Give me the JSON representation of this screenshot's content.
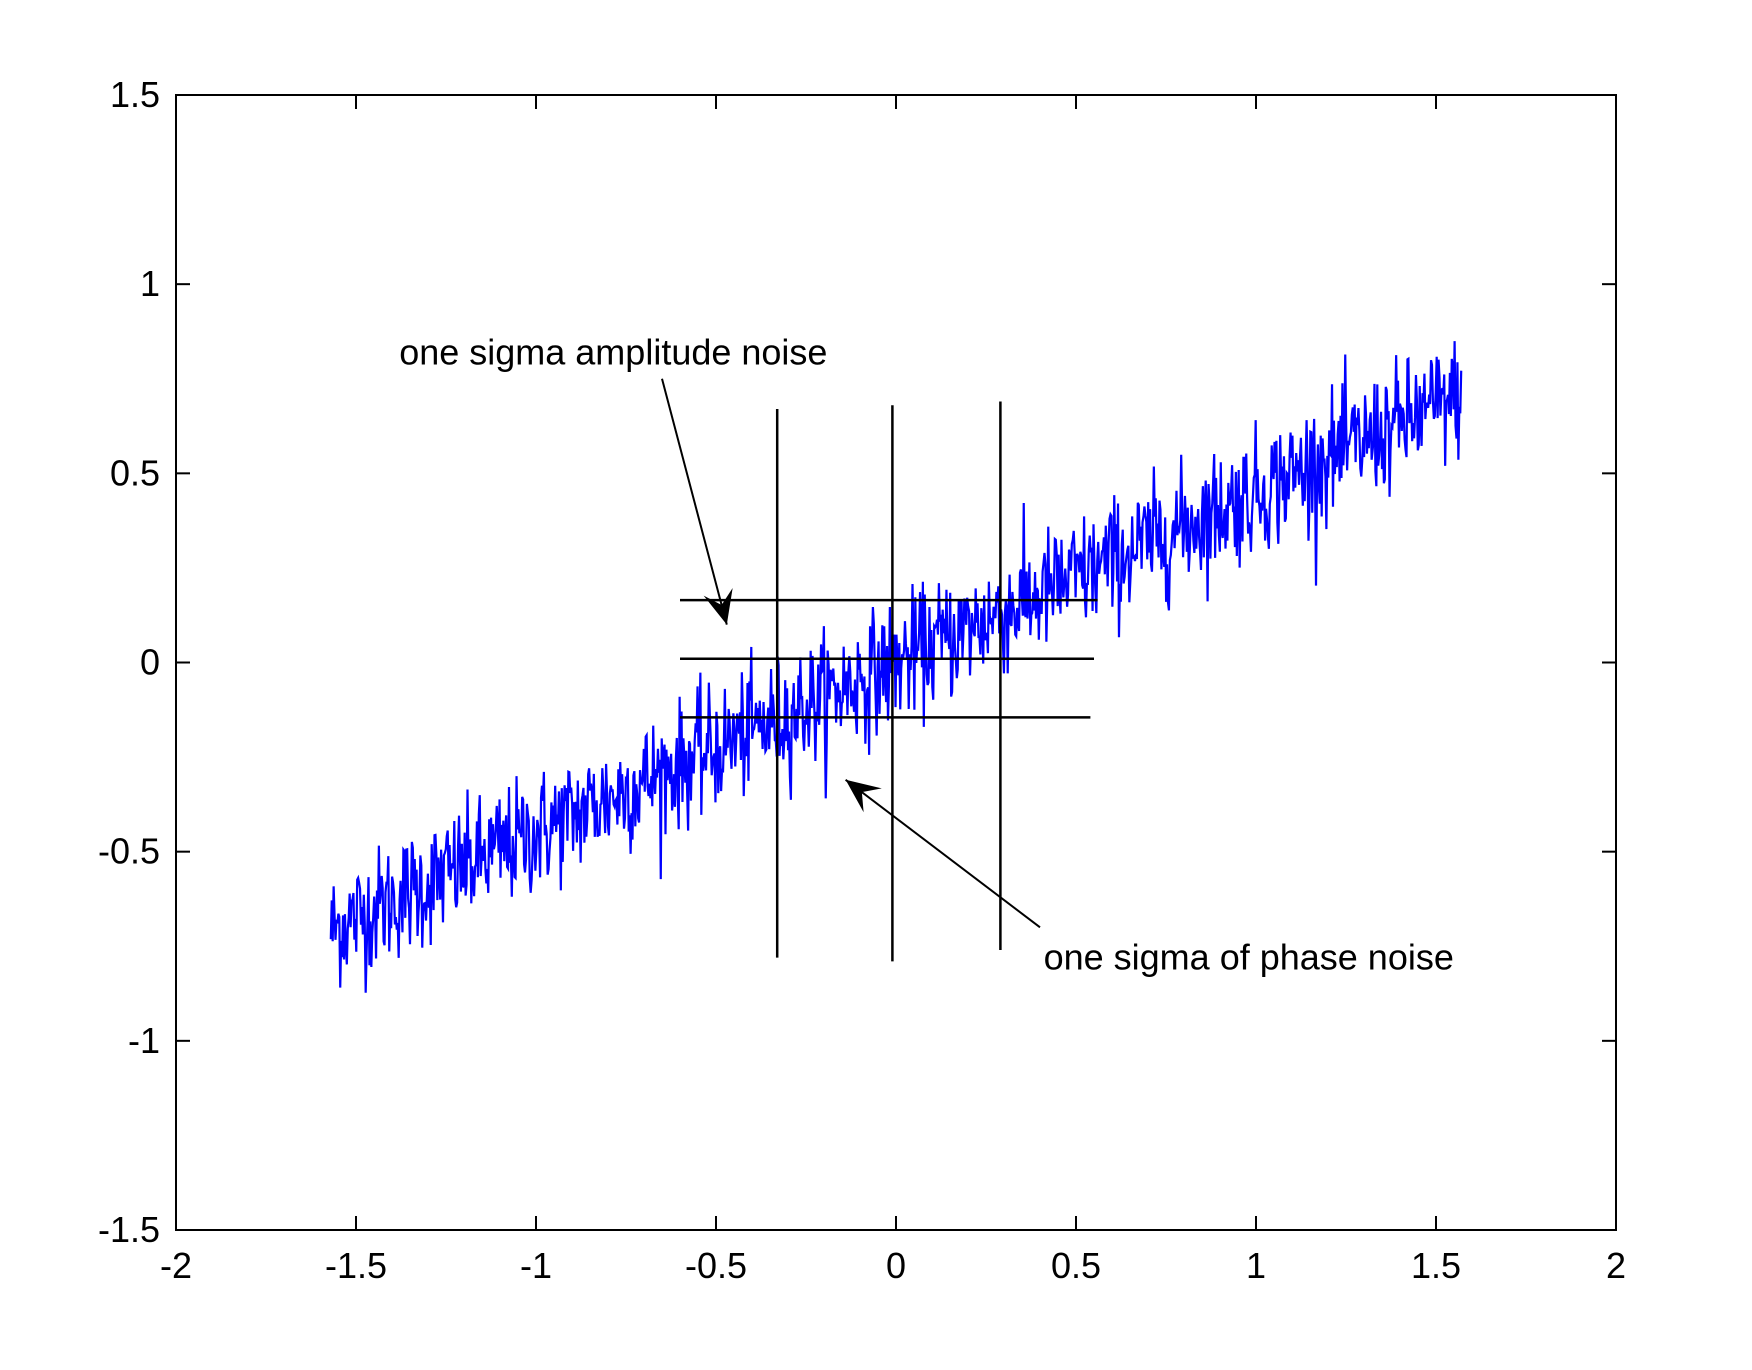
{
  "chart_data": {
    "type": "line",
    "title": "",
    "xlabel": "",
    "ylabel": "",
    "xlim": [
      -2,
      2
    ],
    "ylim": [
      -1.5,
      1.5
    ],
    "grid": false,
    "legend": "none",
    "x_ticks": [
      -2,
      -1.5,
      -1,
      -0.5,
      0,
      0.5,
      1,
      1.5,
      2
    ],
    "x_tick_labels": [
      "-2",
      "-1.5",
      "-1",
      "-0.5",
      "0",
      "0.5",
      "1",
      "1.5",
      "2"
    ],
    "y_ticks": [
      -1.5,
      -1,
      -0.5,
      0,
      0.5,
      1,
      1.5
    ],
    "y_tick_labels": [
      "-1.5",
      "-1",
      "-0.5",
      "0",
      "0.5",
      "1",
      "1.5"
    ],
    "series": [
      {
        "color": "#0000ff",
        "x_range": [
          -1.57,
          1.57
        ],
        "slope": 0.45,
        "noise_sigma": 0.08,
        "samples": 1200
      }
    ],
    "reference_lines": {
      "vertical": [
        {
          "x": -0.33,
          "y": [
            -0.78,
            0.67
          ]
        },
        {
          "x": -0.01,
          "y": [
            -0.79,
            0.68
          ]
        },
        {
          "x": 0.29,
          "y": [
            -0.76,
            0.69
          ]
        }
      ],
      "horizontal": [
        {
          "y": 0.165,
          "x": [
            -0.6,
            0.56
          ]
        },
        {
          "y": 0.01,
          "x": [
            -0.6,
            0.55
          ]
        },
        {
          "y": -0.145,
          "x": [
            -0.6,
            0.54
          ]
        }
      ]
    },
    "annotations": [
      {
        "text": "one sigma amplitude noise",
        "x": -1.38,
        "y": 0.82,
        "arrow_from": [
          -0.65,
          0.75
        ],
        "arrow_to": [
          -0.47,
          0.1
        ]
      },
      {
        "text": "one sigma of phase noise",
        "x": 0.41,
        "y": -0.78,
        "arrow_from": [
          0.4,
          -0.7
        ],
        "arrow_to": [
          -0.14,
          -0.31
        ]
      }
    ]
  }
}
